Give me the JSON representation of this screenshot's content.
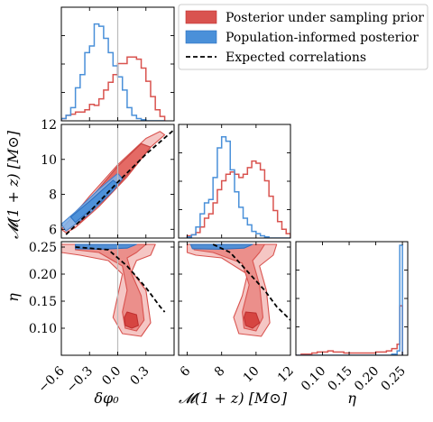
{
  "chart_data": {
    "type": "corner",
    "parameters": [
      {
        "name": "dphi0",
        "label": "δφ₀",
        "range": [
          -0.6,
          0.6
        ],
        "ticks": [
          -0.6,
          -0.3,
          0.0,
          0.3
        ],
        "tick_labels": [
          "−0.6",
          "−0.3",
          "0.0",
          "0.3"
        ]
      },
      {
        "name": "mchirp",
        "label": "𝓜(1 + z) [M⊙]",
        "range": [
          5.5,
          12.0
        ],
        "ticks": [
          6,
          8,
          10,
          12
        ],
        "tick_labels": [
          "6",
          "8",
          "10",
          "12"
        ]
      },
      {
        "name": "eta",
        "label": "η",
        "range": [
          0.05,
          0.26
        ],
        "ticks": [
          0.1,
          0.15,
          0.2,
          0.25
        ],
        "tick_labels": [
          "0.10",
          "0.15",
          "0.20",
          "0.25"
        ]
      }
    ],
    "legend": {
      "position": "top-right",
      "entries": [
        {
          "label": "Posterior under sampling prior",
          "color": "#d9534f",
          "style": "patch"
        },
        {
          "label": "Population-informed posterior",
          "color": "#4a90d9",
          "style": "patch"
        },
        {
          "label": "Expected correlations",
          "color": "#000000",
          "style": "dashed"
        }
      ]
    },
    "reference_line": {
      "param": "dphi0",
      "value": 0.0,
      "color": "#bbbbbb"
    },
    "histograms": {
      "dphi0": {
        "bins": [
          -0.6,
          -0.55,
          -0.5,
          -0.45,
          -0.4,
          -0.35,
          -0.3,
          -0.25,
          -0.2,
          -0.15,
          -0.1,
          -0.05,
          0.0,
          0.05,
          0.1,
          0.15,
          0.2,
          0.25,
          0.3,
          0.35,
          0.4,
          0.45,
          0.5
        ],
        "series": [
          {
            "name": "Posterior under sampling prior",
            "values": [
              0.02,
              0.05,
              0.06,
              0.08,
              0.08,
              0.1,
              0.15,
              0.14,
              0.2,
              0.28,
              0.35,
              0.42,
              0.52,
              0.52,
              0.58,
              0.58,
              0.56,
              0.48,
              0.36,
              0.22,
              0.1,
              0.04
            ]
          },
          {
            "name": "Population-informed posterior",
            "values": [
              0.02,
              0.05,
              0.12,
              0.3,
              0.42,
              0.62,
              0.68,
              0.88,
              0.86,
              0.75,
              0.62,
              0.5,
              0.4,
              0.28,
              0.12,
              0.05,
              0.02,
              0.01,
              0.0,
              0.0,
              0.0,
              0.0
            ]
          }
        ]
      },
      "mchirp": {
        "bins": [
          6.0,
          6.25,
          6.5,
          6.75,
          7.0,
          7.25,
          7.5,
          7.75,
          8.0,
          8.25,
          8.5,
          8.75,
          9.0,
          9.25,
          9.5,
          9.75,
          10.0,
          10.25,
          10.5,
          10.75,
          11.0,
          11.25,
          11.5,
          11.75,
          12.0
        ],
        "series": [
          {
            "name": "Posterior under sampling prior",
            "values": [
              0.02,
              0.03,
              0.05,
              0.1,
              0.18,
              0.22,
              0.32,
              0.44,
              0.52,
              0.58,
              0.6,
              0.58,
              0.55,
              0.58,
              0.64,
              0.7,
              0.68,
              0.62,
              0.52,
              0.38,
              0.25,
              0.15,
              0.08,
              0.04
            ]
          },
          {
            "name": "Population-informed posterior",
            "values": [
              0.01,
              0.03,
              0.1,
              0.22,
              0.32,
              0.35,
              0.55,
              0.82,
              0.92,
              0.88,
              0.62,
              0.42,
              0.28,
              0.18,
              0.12,
              0.06,
              0.04,
              0.02,
              0.01,
              0.0,
              0.0,
              0.0,
              0.0,
              0.0
            ]
          }
        ]
      },
      "eta": {
        "bins": [
          0.05,
          0.06,
          0.07,
          0.08,
          0.09,
          0.1,
          0.11,
          0.12,
          0.13,
          0.14,
          0.15,
          0.16,
          0.17,
          0.18,
          0.19,
          0.2,
          0.21,
          0.22,
          0.23,
          0.24,
          0.245,
          0.25
        ],
        "series": [
          {
            "name": "Posterior under sampling prior",
            "values": [
              0.0,
              0.01,
              0.01,
              0.02,
              0.03,
              0.03,
              0.04,
              0.03,
              0.03,
              0.02,
              0.02,
              0.02,
              0.02,
              0.02,
              0.02,
              0.03,
              0.03,
              0.04,
              0.06,
              0.1,
              0.45
            ]
          },
          {
            "name": "Population-informed posterior",
            "values": [
              0.0,
              0.0,
              0.0,
              0.0,
              0.0,
              0.0,
              0.0,
              0.0,
              0.0,
              0.0,
              0.0,
              0.0,
              0.0,
              0.0,
              0.0,
              0.0,
              0.0,
              0.0,
              0.01,
              0.04,
              1.0
            ]
          }
        ]
      }
    },
    "expected_correlation": {
      "mchirp_vs_dphi0": [
        [
          -0.55,
          5.7
        ],
        [
          -0.3,
          7.0
        ],
        [
          0.0,
          8.7
        ],
        [
          0.3,
          10.3
        ],
        [
          0.6,
          11.7
        ]
      ],
      "eta_vs_dphi0": [
        [
          -0.45,
          0.25
        ],
        [
          -0.1,
          0.245
        ],
        [
          0.1,
          0.215
        ],
        [
          0.3,
          0.175
        ],
        [
          0.45,
          0.14
        ],
        [
          0.5,
          0.13
        ]
      ],
      "eta_vs_mchirp": [
        [
          7.5,
          0.255
        ],
        [
          8.5,
          0.24
        ],
        [
          9.5,
          0.205
        ],
        [
          10.5,
          0.17
        ],
        [
          11.2,
          0.14
        ],
        [
          12.0,
          0.115
        ]
      ]
    },
    "contours": {
      "mchirp_vs_dphi0": {
        "red_outer": [
          [
            -0.55,
            5.8
          ],
          [
            -0.45,
            6.1
          ],
          [
            -0.2,
            7.3
          ],
          [
            0.1,
            9.0
          ],
          [
            0.35,
            10.7
          ],
          [
            0.5,
            11.4
          ],
          [
            0.45,
            11.6
          ],
          [
            0.3,
            11.2
          ],
          [
            0.0,
            9.7
          ],
          [
            -0.3,
            7.9
          ],
          [
            -0.5,
            6.6
          ],
          [
            -0.6,
            6.0
          ]
        ],
        "red_inner": [
          [
            -0.4,
            6.4
          ],
          [
            -0.1,
            7.9
          ],
          [
            0.2,
            9.7
          ],
          [
            0.35,
            10.7
          ],
          [
            0.25,
            10.9
          ],
          [
            0.0,
            9.6
          ],
          [
            -0.3,
            7.7
          ],
          [
            -0.45,
            6.8
          ]
        ],
        "blue_outer": [
          [
            -0.55,
            5.9
          ],
          [
            -0.3,
            6.9
          ],
          [
            -0.05,
            8.2
          ],
          [
            0.05,
            8.9
          ],
          [
            0.0,
            9.2
          ],
          [
            -0.2,
            8.3
          ],
          [
            -0.45,
            7.0
          ],
          [
            -0.6,
            6.3
          ]
        ],
        "blue_inner": [
          [
            -0.45,
            6.4
          ],
          [
            -0.2,
            7.5
          ],
          [
            0.0,
            8.6
          ],
          [
            -0.05,
            8.8
          ],
          [
            -0.3,
            7.6
          ],
          [
            -0.5,
            6.7
          ]
        ]
      },
      "eta_vs_dphi0": {
        "red_outer": [
          [
            -0.6,
            0.255
          ],
          [
            0.4,
            0.255
          ],
          [
            0.35,
            0.235
          ],
          [
            0.2,
            0.225
          ],
          [
            0.15,
            0.205
          ],
          [
            0.3,
            0.17
          ],
          [
            0.35,
            0.11
          ],
          [
            0.25,
            0.085
          ],
          [
            0.05,
            0.09
          ],
          [
            -0.05,
            0.12
          ],
          [
            0.0,
            0.16
          ],
          [
            0.05,
            0.2
          ],
          [
            -0.1,
            0.225
          ],
          [
            -0.4,
            0.235
          ],
          [
            -0.6,
            0.24
          ]
        ],
        "red_mid": [
          [
            -0.45,
            0.255
          ],
          [
            0.3,
            0.255
          ],
          [
            0.2,
            0.24
          ],
          [
            0.1,
            0.23
          ],
          [
            0.15,
            0.2
          ],
          [
            0.25,
            0.16
          ],
          [
            0.28,
            0.115
          ],
          [
            0.2,
            0.095
          ],
          [
            0.08,
            0.1
          ],
          [
            0.05,
            0.13
          ],
          [
            0.1,
            0.17
          ],
          [
            0.05,
            0.215
          ],
          [
            -0.2,
            0.24
          ],
          [
            -0.45,
            0.245
          ]
        ],
        "red_core": [
          [
            0.1,
            0.13
          ],
          [
            0.2,
            0.125
          ],
          [
            0.22,
            0.105
          ],
          [
            0.15,
            0.1
          ],
          [
            0.08,
            0.105
          ],
          [
            0.07,
            0.12
          ]
        ],
        "blue_band": [
          [
            -0.45,
            0.255
          ],
          [
            0.2,
            0.255
          ],
          [
            0.1,
            0.248
          ],
          [
            -0.2,
            0.246
          ],
          [
            -0.45,
            0.247
          ]
        ]
      },
      "eta_vs_mchirp": {
        "red_outer": [
          [
            6.0,
            0.255
          ],
          [
            11.2,
            0.255
          ],
          [
            11.0,
            0.235
          ],
          [
            10.2,
            0.215
          ],
          [
            10.6,
            0.17
          ],
          [
            10.8,
            0.11
          ],
          [
            10.3,
            0.085
          ],
          [
            9.0,
            0.09
          ],
          [
            8.7,
            0.12
          ],
          [
            9.2,
            0.16
          ],
          [
            9.5,
            0.2
          ],
          [
            8.0,
            0.23
          ],
          [
            6.5,
            0.235
          ],
          [
            6.0,
            0.24
          ]
        ],
        "red_mid": [
          [
            6.3,
            0.255
          ],
          [
            10.5,
            0.255
          ],
          [
            10.2,
            0.24
          ],
          [
            9.8,
            0.225
          ],
          [
            10.2,
            0.18
          ],
          [
            10.4,
            0.12
          ],
          [
            10.0,
            0.095
          ],
          [
            9.3,
            0.1
          ],
          [
            9.2,
            0.13
          ],
          [
            9.6,
            0.18
          ],
          [
            9.2,
            0.22
          ],
          [
            7.5,
            0.24
          ],
          [
            6.4,
            0.245
          ]
        ],
        "red_core": [
          [
            9.4,
            0.13
          ],
          [
            10.0,
            0.128
          ],
          [
            10.2,
            0.11
          ],
          [
            9.8,
            0.1
          ],
          [
            9.4,
            0.105
          ],
          [
            9.3,
            0.12
          ]
        ],
        "blue_band": [
          [
            6.2,
            0.255
          ],
          [
            9.8,
            0.255
          ],
          [
            9.3,
            0.248
          ],
          [
            8.0,
            0.246
          ],
          [
            6.3,
            0.247
          ]
        ]
      }
    }
  }
}
